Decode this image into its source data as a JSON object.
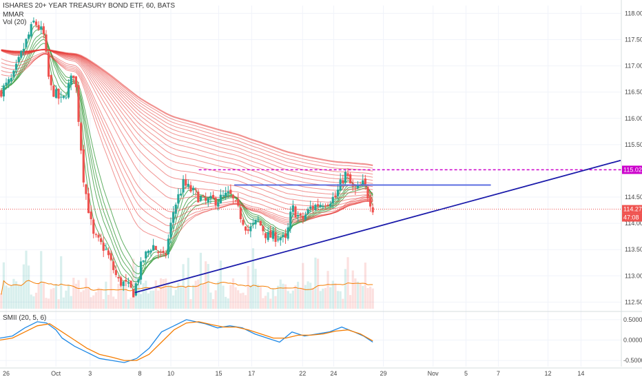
{
  "legend": {
    "title": "ISHARES 20+ YEAR TREASURY BOND ETF, 60, BATS",
    "line2": "MMAR",
    "line3": "Vol (20)",
    "osc": "SMII (20, 5, 6)"
  },
  "colors": {
    "up": "#26a69a",
    "down": "#ef5350",
    "ribbon_slow": "#e53935",
    "ribbon_fast": "#43a047",
    "resistance": "#cc00cc",
    "range_line": "#5b6ee1",
    "trendline": "#1a1aaa",
    "price_line": "#ef5350",
    "smii_main": "#1e88e5",
    "smii_signal": "#f57c00",
    "vol_ma": "#f57c00"
  },
  "chart_data": [
    {
      "type": "candlestick",
      "title": "ISHARES 20+ YEAR TREASURY BOND ETF, 60, BATS",
      "x_tick_labels": [
        "26",
        "Oct",
        "3",
        "8",
        "10",
        "15",
        "17",
        "22",
        "24",
        "29",
        "Nov",
        "5",
        "7",
        "12",
        "14"
      ],
      "y_tick_labels": [
        "118.00",
        "117.50",
        "117.00",
        "116.50",
        "116.00",
        "115.50",
        "115.02",
        "114.50",
        "114.27",
        "114.00",
        "113.50",
        "113.00",
        "112.50"
      ],
      "ylim": [
        112.4,
        118.15
      ],
      "price_tags": {
        "resistance": "115.02",
        "last": "114.27",
        "countdown": "47:08"
      },
      "levels": {
        "resistance": 115.02,
        "range_line": 114.73,
        "last_price": 114.27
      },
      "trendline": [
        [
          0.217,
          112.68
        ],
        [
          0.999,
          115.2
        ]
      ],
      "close_path": [
        [
          0.0,
          116.5
        ],
        [
          0.02,
          116.75
        ],
        [
          0.04,
          117.4
        ],
        [
          0.055,
          117.85
        ],
        [
          0.07,
          117.6
        ],
        [
          0.08,
          116.6
        ],
        [
          0.1,
          116.3
        ],
        [
          0.12,
          116.9
        ],
        [
          0.135,
          114.8
        ],
        [
          0.15,
          113.75
        ],
        [
          0.17,
          113.5
        ],
        [
          0.19,
          112.9
        ],
        [
          0.2,
          112.85
        ],
        [
          0.215,
          112.68
        ],
        [
          0.23,
          113.3
        ],
        [
          0.245,
          113.6
        ],
        [
          0.265,
          113.3
        ],
        [
          0.28,
          114.3
        ],
        [
          0.295,
          114.75
        ],
        [
          0.31,
          114.6
        ],
        [
          0.33,
          114.4
        ],
        [
          0.35,
          114.45
        ],
        [
          0.37,
          114.55
        ],
        [
          0.385,
          114.2
        ],
        [
          0.4,
          113.85
        ],
        [
          0.415,
          114.05
        ],
        [
          0.43,
          113.75
        ],
        [
          0.45,
          113.75
        ],
        [
          0.46,
          113.65
        ],
        [
          0.47,
          114.3
        ],
        [
          0.485,
          114.05
        ],
        [
          0.5,
          114.3
        ],
        [
          0.52,
          114.4
        ],
        [
          0.54,
          114.5
        ],
        [
          0.555,
          114.95
        ],
        [
          0.57,
          114.6
        ],
        [
          0.585,
          114.75
        ],
        [
          0.6,
          114.3
        ],
        [
          0.602,
          114.27
        ]
      ],
      "volume": {
        "scale": "relative",
        "baseline_rows": true
      },
      "ribbon": {
        "name": "MMAR",
        "fast_color": "#43a047",
        "slow_color": "#e53935"
      }
    },
    {
      "type": "line",
      "title": "SMII (20, 5, 6)",
      "y_tick_labels": [
        "0.5000",
        "0.0000",
        "-0.5000"
      ],
      "ylim": [
        -0.65,
        0.6
      ],
      "series": [
        {
          "values": [
            [
              0.0,
              0.05
            ],
            [
              0.02,
              0.1
            ],
            [
              0.04,
              0.3
            ],
            [
              0.06,
              0.45
            ],
            [
              0.075,
              0.42
            ],
            [
              0.09,
              0.25
            ],
            [
              0.1,
              0.05
            ],
            [
              0.12,
              -0.15
            ],
            [
              0.14,
              -0.3
            ],
            [
              0.16,
              -0.45
            ],
            [
              0.18,
              -0.5
            ],
            [
              0.2,
              -0.55
            ],
            [
              0.22,
              -0.45
            ],
            [
              0.24,
              -0.2
            ],
            [
              0.26,
              0.2
            ],
            [
              0.28,
              0.35
            ],
            [
              0.3,
              0.5
            ],
            [
              0.315,
              0.45
            ],
            [
              0.33,
              0.4
            ],
            [
              0.35,
              0.3
            ],
            [
              0.37,
              0.35
            ],
            [
              0.39,
              0.3
            ],
            [
              0.41,
              0.15
            ],
            [
              0.43,
              0.05
            ],
            [
              0.45,
              -0.05
            ],
            [
              0.47,
              0.2
            ],
            [
              0.49,
              0.1
            ],
            [
              0.51,
              0.15
            ],
            [
              0.53,
              0.2
            ],
            [
              0.55,
              0.32
            ],
            [
              0.57,
              0.2
            ],
            [
              0.585,
              0.1
            ],
            [
              0.6,
              -0.05
            ]
          ]
        },
        {
          "values": [
            [
              0.0,
              0.0
            ],
            [
              0.02,
              0.05
            ],
            [
              0.04,
              0.2
            ],
            [
              0.06,
              0.35
            ],
            [
              0.08,
              0.4
            ],
            [
              0.1,
              0.2
            ],
            [
              0.12,
              0.0
            ],
            [
              0.14,
              -0.2
            ],
            [
              0.16,
              -0.35
            ],
            [
              0.18,
              -0.42
            ],
            [
              0.2,
              -0.5
            ],
            [
              0.22,
              -0.5
            ],
            [
              0.24,
              -0.35
            ],
            [
              0.26,
              -0.05
            ],
            [
              0.28,
              0.25
            ],
            [
              0.3,
              0.42
            ],
            [
              0.32,
              0.45
            ],
            [
              0.34,
              0.38
            ],
            [
              0.36,
              0.32
            ],
            [
              0.38,
              0.32
            ],
            [
              0.4,
              0.25
            ],
            [
              0.42,
              0.15
            ],
            [
              0.44,
              0.05
            ],
            [
              0.46,
              0.05
            ],
            [
              0.48,
              0.12
            ],
            [
              0.5,
              0.12
            ],
            [
              0.52,
              0.15
            ],
            [
              0.54,
              0.22
            ],
            [
              0.56,
              0.25
            ],
            [
              0.58,
              0.15
            ],
            [
              0.6,
              -0.02
            ]
          ]
        }
      ]
    }
  ]
}
